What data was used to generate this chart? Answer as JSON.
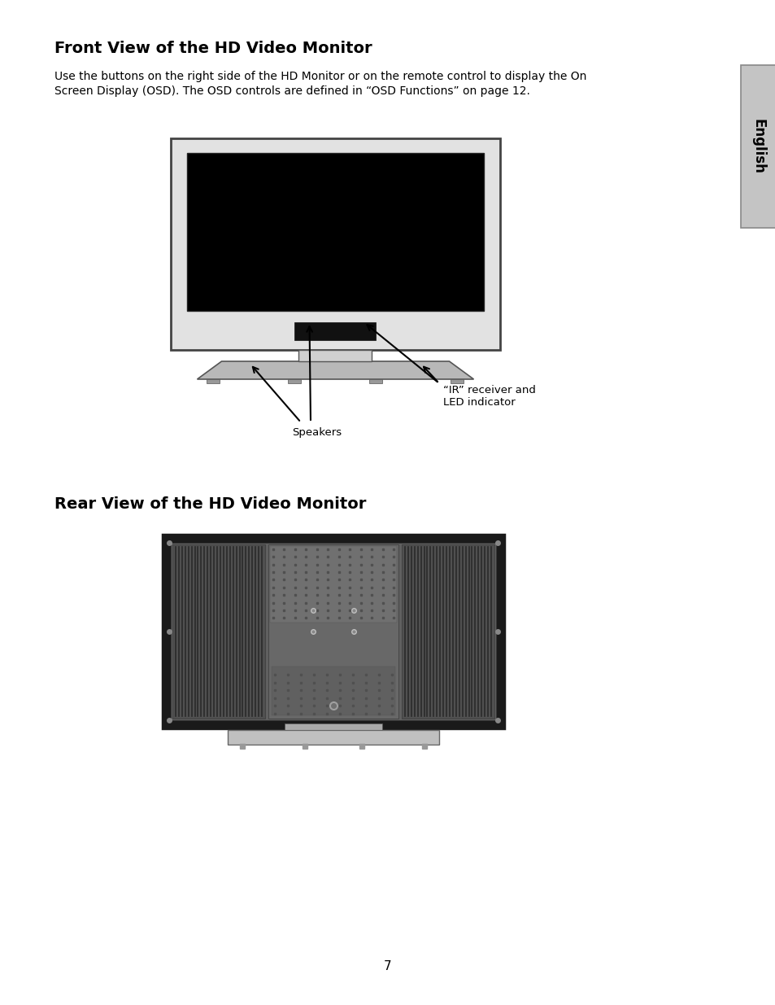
{
  "bg_color": "#ffffff",
  "title1": "Front View of the HD Video Monitor",
  "body_text1": "Use the buttons on the right side of the HD Monitor or on the remote control to display the On",
  "body_text2": "Screen Display (OSD). The OSD controls are defined in “OSD Functions” on page 12.",
  "title2": "Rear View of the HD Video Monitor",
  "label_speakers": "Speakers",
  "label_ir_line1": "“IR” receiver and",
  "label_ir_line2": "LED indicator",
  "page_number": "7",
  "tab_text": "English",
  "tab_color": "#c4c4c4",
  "tab_border": "#888888"
}
